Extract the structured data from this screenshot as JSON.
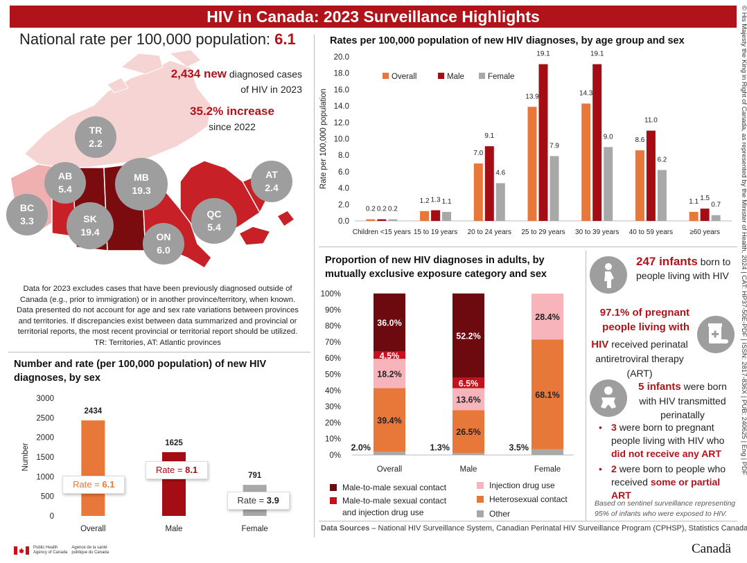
{
  "banner_title": "HIV in Canada: 2023 Surveillance Highlights",
  "copyright_vertical": "© His Majesty the King in Right of Canada, as represented by the Minister of Health, 2024 | CAT: HP37-50E-PDF | ISSN: 2817-836X | PUB: 240625 | Eng | PDF",
  "national": {
    "label": "National rate per 100,000 population:",
    "value": "6.1"
  },
  "new_cases": {
    "count": "2,434 new",
    "text_a": "diagnosed cases",
    "text_b": "of HIV in 2023"
  },
  "increase": {
    "value": "35.2% increase",
    "text": "since 2022"
  },
  "map": {
    "regions": [
      {
        "code": "TR",
        "rate": "2.2"
      },
      {
        "code": "AB",
        "rate": "5.4"
      },
      {
        "code": "MB",
        "rate": "19.3"
      },
      {
        "code": "AT",
        "rate": "2.4"
      },
      {
        "code": "BC",
        "rate": "3.3"
      },
      {
        "code": "SK",
        "rate": "19.4"
      },
      {
        "code": "QC",
        "rate": "5.4"
      },
      {
        "code": "ON",
        "rate": "6.0"
      }
    ],
    "colors": {
      "very_light": "#f6d4d4",
      "light": "#f0b0b0",
      "medium": "#c72027",
      "dark": "#7a0c10",
      "bubble": "#9e9e9e"
    }
  },
  "data_note": {
    "line1": "Data for 2023 excludes cases that have been previously diagnosed outside of",
    "line2": "Canada (e.g., prior to immigration) or in another province/territory, when known.",
    "line3": "Data presented do not account for age and sex rate variations between provinces",
    "line4": "and territories. If discrepancies exist between data summarized and provincial or",
    "line5": "territorial reports, the most recent provincial or territorial report should be utilized.",
    "line6": "TR: Territories, AT: Atlantic provinces"
  },
  "colors": {
    "orange": "#e8773a",
    "red_dark": "#a50d14",
    "gray": "#a8a8a8",
    "brand_red": "#b0131a",
    "maroon": "#6d0a0f",
    "red": "#c8101c",
    "pink": "#f7b5bb"
  },
  "chart_data": [
    {
      "type": "bar",
      "title": "Rates per 100,000 population of new HIV diagnoses, by age group and sex",
      "ylabel": "Rate per 100,000 population",
      "ylim": [
        0,
        20
      ],
      "yticks": [
        "0.0",
        "2.0",
        "4.0",
        "6.0",
        "8.0",
        "10.0",
        "12.0",
        "14.0",
        "16.0",
        "18.0",
        "20.0"
      ],
      "categories": [
        "Children <15 years",
        "15 to 19 years",
        "20 to 24 years",
        "25 to 29 years",
        "30 to 39 years",
        "40 to 59 years",
        "≥60 years"
      ],
      "series": [
        {
          "name": "Overall",
          "color": "#e8773a",
          "values": [
            0.2,
            1.2,
            7.0,
            13.9,
            14.3,
            8.6,
            1.1
          ],
          "labels": [
            "0.2",
            "1.2",
            "7.0",
            "13.9",
            "14.3",
            "8.6",
            "1.1"
          ]
        },
        {
          "name": "Male",
          "color": "#a50d14",
          "values": [
            0.2,
            1.3,
            9.1,
            19.1,
            19.1,
            11.0,
            1.5
          ],
          "labels": [
            "0.2",
            "1.3",
            "9.1",
            "19.1",
            "19.1",
            "11.0",
            "1.5"
          ]
        },
        {
          "name": "Female",
          "color": "#a8a8a8",
          "values": [
            0.2,
            1.1,
            4.6,
            7.9,
            9.0,
            6.2,
            0.7
          ],
          "labels": [
            "0.2",
            "1.1",
            "4.6",
            "7.9",
            "9.0",
            "6.2",
            "0.7"
          ]
        }
      ],
      "legend": "top-left"
    },
    {
      "type": "bar",
      "title": "Number and rate (per 100,000 population) of new HIV diagnoses, by sex",
      "ylabel": "Number",
      "ylim": [
        0,
        3000
      ],
      "yticks": [
        "0",
        "500",
        "1000",
        "1500",
        "2000",
        "2500",
        "3000"
      ],
      "categories": [
        "Overall",
        "Male",
        "Female"
      ],
      "values": [
        2434,
        1625,
        791
      ],
      "value_labels": [
        "2434",
        "1625",
        "791"
      ],
      "colors": [
        "#e8773a",
        "#a50d14",
        "#a8a8a8"
      ],
      "rate_prefix": "Rate = ",
      "rates": [
        "6.1",
        "8.1",
        "3.9"
      ]
    },
    {
      "type": "bar",
      "stacked": true,
      "title": "Proportion of new HIV diagnoses in adults, by mutually exclusive exposure category and sex",
      "ylim": [
        0,
        100
      ],
      "yticks": [
        "0%",
        "10%",
        "20%",
        "30%",
        "40%",
        "50%",
        "60%",
        "70%",
        "80%",
        "90%",
        "100%"
      ],
      "categories": [
        "Overall",
        "Male",
        "Female"
      ],
      "series": [
        {
          "name": "Other",
          "color": "#a8a8a8",
          "values": [
            2.0,
            1.3,
            3.5
          ],
          "labels": [
            "2.0%",
            "1.3%",
            "3.5%"
          ]
        },
        {
          "name": "Heterosexual contact",
          "color": "#e8773a",
          "values": [
            39.4,
            26.5,
            68.1
          ],
          "labels": [
            "39.4%",
            "26.5%",
            "68.1%"
          ]
        },
        {
          "name": "Injection drug use",
          "color": "#f7b5bb",
          "values": [
            18.2,
            13.6,
            28.4
          ],
          "labels": [
            "18.2%",
            "13.6%",
            "28.4%"
          ]
        },
        {
          "name": "Male-to-male sexual contact and injection drug use",
          "color": "#c8101c",
          "values": [
            4.5,
            6.5,
            0
          ],
          "labels": [
            "4.5%",
            "6.5%",
            ""
          ]
        },
        {
          "name": "Male-to-male sexual contact",
          "color": "#6d0a0f",
          "values": [
            36.0,
            52.2,
            0
          ],
          "labels": [
            "36.0%",
            "52.2%",
            ""
          ]
        }
      ],
      "legend_labels": {
        "msm": "Male-to-male sexual contact",
        "msm_idu_a": "Male-to-male sexual contact",
        "msm_idu_b": "and injection drug use",
        "idu": "Injection drug use",
        "het": "Heterosexual contact",
        "other": "Other"
      }
    }
  ],
  "infants": {
    "count": "247 infants",
    "text": "born to people living with HIV",
    "pregnant_a": "97.1% of pregnant",
    "pregnant_b": "people living with",
    "pregnant_c": "HIV",
    "pregnant_d": "received perinatal",
    "pregnant_e": "antiretroviral therapy",
    "pregnant_f": "(ART)",
    "born_count": "5 infants",
    "born_text": "were born with HIV transmitted perinatally",
    "bullet1_num": "3",
    "bullet1_text": "were born to pregnant people living with HIV who",
    "bullet1_red": "did not receive any ART",
    "bullet2_num": "2",
    "bullet2_text": "were born to people who received",
    "bullet2_red": "some or partial ART",
    "sentinel": "Based on sentinel surveillance representing 95% of infants who were exposed to HIV.",
    "icons": [
      "pregnant-person-icon",
      "medication-icon",
      "infant-icon"
    ]
  },
  "sources": {
    "label": "Data Sources",
    "text": " – National HIV Surveillance System, Canadian Perinatal HIV Surveillance Program (CPHSP), Statistics Canada"
  },
  "footer": {
    "agency_en_1": "Public Health",
    "agency_en_2": "Agency of Canada",
    "agency_fr_1": "Agence de la santé",
    "agency_fr_2": "publique du Canada",
    "wordmark": "Canadä"
  }
}
